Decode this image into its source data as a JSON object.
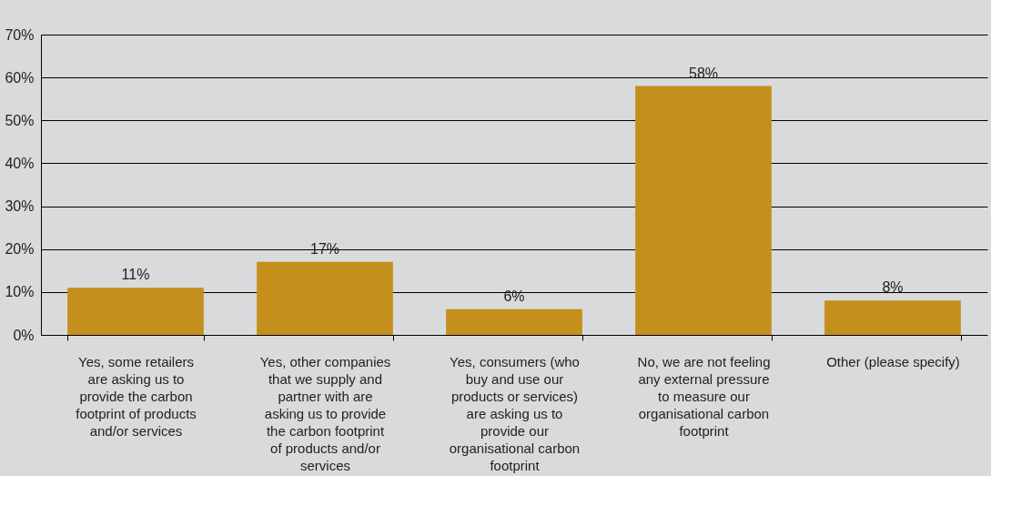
{
  "chart_data": {
    "type": "bar",
    "categories": [
      "Yes, some retailers are asking us to provide the carbon footprint of products and/or services",
      "Yes, other companies that we supply and partner with are asking us to provide the carbon footprint of products and/or services",
      "Yes, consumers (who buy and use our products or services) are asking us to provide our organisational carbon footprint",
      "No, we are not feeling any external pressure to measure our organisational carbon footprint",
      "Other (please specify)"
    ],
    "values": [
      11,
      17,
      6,
      58,
      8
    ],
    "color": "#c48f1d",
    "value_labels": [
      "11%",
      "17%",
      "6%",
      "58%",
      "8%"
    ],
    "ylim": [
      0,
      70
    ],
    "yticks": [
      {
        "value": 0,
        "label": "0%"
      },
      {
        "value": 10,
        "label": "10%"
      },
      {
        "value": 20,
        "label": "20%"
      },
      {
        "value": 30,
        "label": "30%"
      },
      {
        "value": 40,
        "label": "40%"
      },
      {
        "value": 50,
        "label": "50%"
      },
      {
        "value": 60,
        "label": "60%"
      },
      {
        "value": 70,
        "label": "70%"
      }
    ],
    "grid": "y"
  }
}
